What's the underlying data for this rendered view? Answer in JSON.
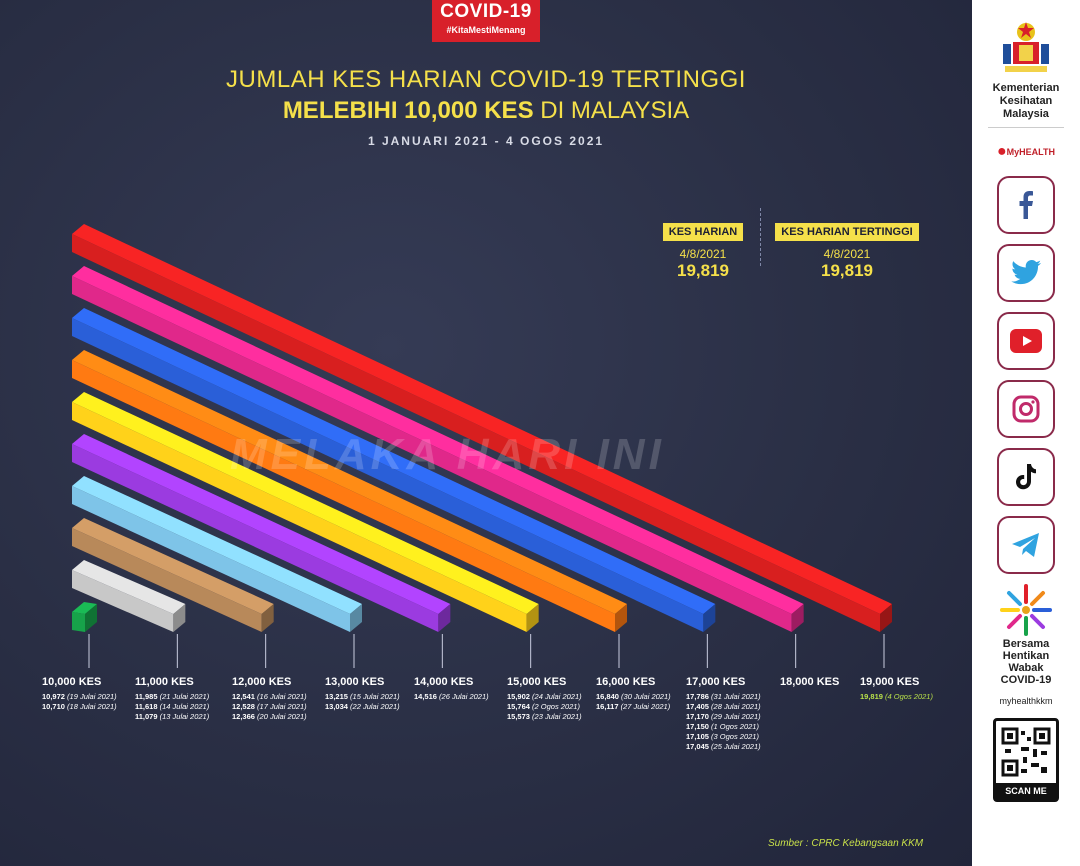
{
  "badge": {
    "title": "COVID-19",
    "hashtag": "#KitaMestiMenang"
  },
  "title": {
    "line1": "JUMLAH KES HARIAN COVID-19 TERTINGGI",
    "line2_bold": "MELEBIHI 10,000 KES",
    "line2_rest": " DI MALAYSIA",
    "date_range": "1 JANUARI 2021 - 4 OGOS 2021"
  },
  "kes_harian": {
    "label": "KES HARIAN",
    "date": "4/8/2021",
    "value": "19,819"
  },
  "kes_tertinggi": {
    "label": "KES HARIAN TERTINGGI",
    "date": "4/8/2021",
    "value": "19,819"
  },
  "watermark": "MELAKA HARI INI",
  "source": "Sumber : CPRC Kebangsaan KKM",
  "chart_data": {
    "type": "bar",
    "orientation": "horizontal-3d",
    "categories": [
      "10,000 KES",
      "11,000 KES",
      "12,000 KES",
      "13,000 KES",
      "14,000 KES",
      "15,000 KES",
      "16,000 KES",
      "17,000 KES",
      "18,000 KES",
      "19,000 KES"
    ],
    "values": [
      10000,
      11000,
      12000,
      13000,
      14000,
      15000,
      16000,
      17000,
      18000,
      19000
    ],
    "colors": [
      "#17a34a",
      "#c8c8c8",
      "#b8895a",
      "#7ec4e8",
      "#9b3be0",
      "#ffd21a",
      "#ff7a12",
      "#2a5fd8",
      "#e0288a",
      "#d81f1f"
    ],
    "groups": [
      {
        "level": "10,000 KES",
        "entries": [
          {
            "value": "10,972",
            "date": "(19 Julai 2021)"
          },
          {
            "value": "10,710",
            "date": "(18 Julai 2021)"
          }
        ]
      },
      {
        "level": "11,000 KES",
        "entries": [
          {
            "value": "11,985",
            "date": "(21 Julai 2021)"
          },
          {
            "value": "11,618",
            "date": "(14 Julai 2021)"
          },
          {
            "value": "11,079",
            "date": "(13 Julai 2021)"
          }
        ]
      },
      {
        "level": "12,000 KES",
        "entries": [
          {
            "value": "12,541",
            "date": "(16 Julai 2021)"
          },
          {
            "value": "12,528",
            "date": "(17 Julai 2021)"
          },
          {
            "value": "12,366",
            "date": "(20 Julai 2021)"
          }
        ]
      },
      {
        "level": "13,000 KES",
        "entries": [
          {
            "value": "13,215",
            "date": "(15 Julai 2021)"
          },
          {
            "value": "13,034",
            "date": "(22 Julai 2021)"
          }
        ]
      },
      {
        "level": "14,000 KES",
        "entries": [
          {
            "value": "14,516",
            "date": "(26 Julai 2021)"
          }
        ]
      },
      {
        "level": "15,000 KES",
        "entries": [
          {
            "value": "15,902",
            "date": "(24 Julai 2021)"
          },
          {
            "value": "15,764",
            "date": "(2 Ogos 2021)"
          },
          {
            "value": "15,573",
            "date": "(23 Julai 2021)"
          }
        ]
      },
      {
        "level": "16,000 KES",
        "entries": [
          {
            "value": "16,840",
            "date": "(30 Julai 2021)"
          },
          {
            "value": "16,117",
            "date": "(27 Julai 2021)"
          }
        ]
      },
      {
        "level": "17,000 KES",
        "entries": [
          {
            "value": "17,786",
            "date": "(31 Julai 2021)"
          },
          {
            "value": "17,405",
            "date": "(28 Julai 2021)"
          },
          {
            "value": "17,170",
            "date": "(29 Julai 2021)"
          },
          {
            "value": "17,150",
            "date": "(1 Ogos 2021)"
          },
          {
            "value": "17,105",
            "date": "(3 Ogos 2021)"
          },
          {
            "value": "17,045",
            "date": "(25 Julai 2021)"
          }
        ]
      },
      {
        "level": "18,000 KES",
        "entries": []
      },
      {
        "level": "19,000 KES",
        "entries": [
          {
            "value": "19,819",
            "date": "(4 Ogos 2021)"
          }
        ]
      }
    ]
  },
  "sidebar": {
    "ministry": [
      "Kementerian",
      "Kesihatan",
      "Malaysia"
    ],
    "myhealth": "MyHEALTH",
    "social_icons": [
      "facebook-icon",
      "twitter-icon",
      "youtube-icon",
      "instagram-icon",
      "tiktok-icon",
      "telegram-icon"
    ],
    "campaign": [
      "Bersama",
      "Hentikan",
      "Wabak",
      "COVID-19"
    ],
    "handle": "myhealthkkm",
    "scan": "SCAN ME"
  }
}
